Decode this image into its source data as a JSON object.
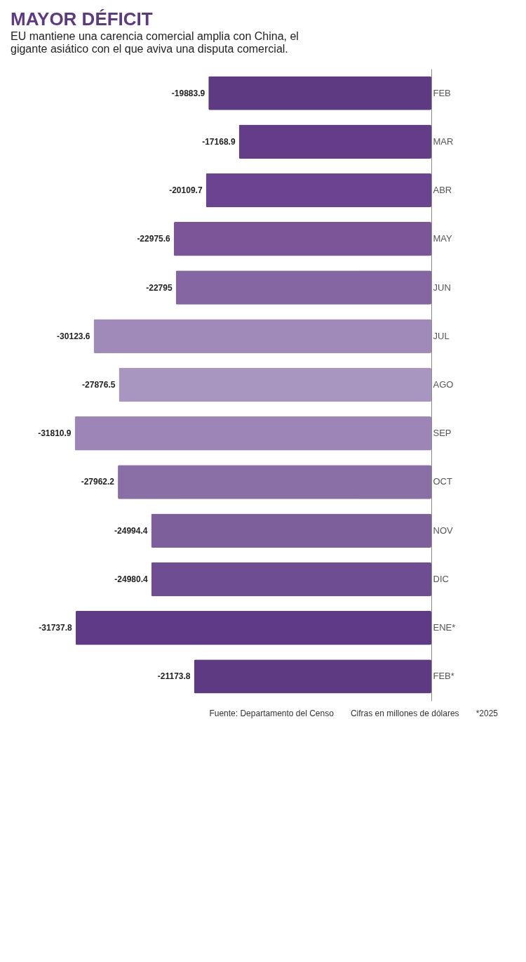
{
  "chart_data": {
    "type": "bar",
    "orientation": "horizontal",
    "title": "MAYOR DÉFICIT",
    "subtitle": "EU mantiene una carencia comercial amplia con China, el gigante asiático con el que aviva una disputa comercial.",
    "categories": [
      "FEB",
      "MAR",
      "ABR",
      "MAY",
      "JUN",
      "JUL",
      "AGO",
      "SEP",
      "OCT",
      "NOV",
      "DIC",
      "ENE*",
      "FEB*"
    ],
    "values": [
      -19883.9,
      -17168.9,
      -20109.7,
      -22975.6,
      -22795,
      -30123.6,
      -27876.5,
      -31810.9,
      -27962.2,
      -24994.4,
      -24980.4,
      -31737.8,
      -21173.8
    ],
    "colors": [
      "#5e3a82",
      "#643d88",
      "#6a4490",
      "#7a5598",
      "#8566a3",
      "#a08ab9",
      "#a996c0",
      "#9d85b8",
      "#8a6fa6",
      "#7d5f9c",
      "#6f4d92",
      "#5f3a86",
      "#5e3a82"
    ],
    "data_labels": true,
    "grid": false,
    "legend": false,
    "annotations": [
      "Fuente: Departamento del Censo",
      "Cifras en millones de dólares",
      "*2025"
    ]
  }
}
